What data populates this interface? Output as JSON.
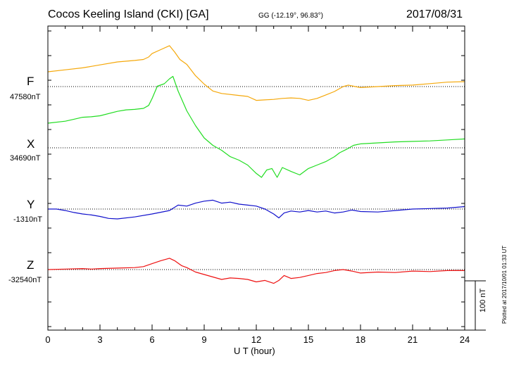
{
  "header": {
    "station": "Cocos Keeling Island (CKI)  [GA]",
    "coords": "GG (-12.19°,  96.83°)",
    "date": "2017/08/31"
  },
  "components": [
    {
      "name": "F",
      "baseline": "47580nT",
      "color": "#f5a80a"
    },
    {
      "name": "X",
      "baseline": "34690nT",
      "color": "#22dd22"
    },
    {
      "name": "Y",
      "baseline": "-1310nT",
      "color": "#1111cc"
    },
    {
      "name": "Z",
      "baseline": "-32540nT",
      "color": "#ee1111"
    }
  ],
  "scale_label": "100 nT",
  "plotted_label": "Plotted at 2017/10/01 01:33 UT",
  "chart_data": {
    "type": "line",
    "title": "Cocos Keeling Island (CKI)  [GA]",
    "xlabel": "U T (hour)",
    "xlim": [
      0,
      24
    ],
    "x_ticks": [
      0,
      3,
      6,
      9,
      12,
      15,
      18,
      21,
      24
    ],
    "y_unit": "nT",
    "scale_bar_nT": 100,
    "grid": "dotted baselines",
    "series": [
      {
        "name": "F",
        "baseline_nT": 47580,
        "x": [
          0,
          1,
          2,
          2.5,
          3,
          4,
          5,
          5.5,
          5.8,
          6,
          6.5,
          7,
          7.3,
          7.6,
          8,
          8.5,
          9,
          9.5,
          10,
          11,
          11.5,
          12,
          12.5,
          13,
          13.5,
          14,
          14.5,
          15,
          15.5,
          16,
          16.5,
          17,
          17.3,
          17.7,
          18,
          19,
          20,
          21,
          22,
          23,
          24
        ],
        "y": [
          30,
          34,
          38,
          41,
          44,
          50,
          53,
          55,
          60,
          67,
          75,
          83,
          70,
          55,
          45,
          22,
          5,
          -9,
          -14,
          -18,
          -20,
          -28,
          -27,
          -26,
          -24,
          -23,
          -24,
          -28,
          -24,
          -17,
          -10,
          0,
          3,
          0,
          -2,
          0,
          2,
          3,
          6,
          9,
          10
        ]
      },
      {
        "name": "X",
        "baseline_nT": 34690,
        "x": [
          0,
          1,
          1.5,
          2,
          2.5,
          3,
          4,
          4.5,
          5,
          5.5,
          5.8,
          6,
          6.3,
          6.7,
          7,
          7.2,
          7.5,
          8,
          8.5,
          9,
          9.5,
          10,
          10.5,
          11,
          11.5,
          12,
          12.3,
          12.6,
          12.9,
          13.2,
          13.5,
          14,
          14.5,
          15,
          15.5,
          16,
          16.5,
          16.8,
          17.2,
          17.6,
          18,
          19,
          20,
          21,
          22,
          23,
          24
        ],
        "y": [
          50,
          54,
          58,
          62,
          63,
          65,
          74,
          77,
          78,
          80,
          86,
          100,
          125,
          130,
          140,
          145,
          115,
          75,
          45,
          20,
          5,
          -5,
          -18,
          -25,
          -35,
          -52,
          -60,
          -45,
          -42,
          -60,
          -40,
          -48,
          -55,
          -42,
          -35,
          -28,
          -18,
          -10,
          -3,
          5,
          8,
          10,
          12,
          13,
          14,
          16,
          18
        ]
      },
      {
        "name": "Y",
        "baseline_nT": -1310,
        "x": [
          0,
          0.5,
          1,
          1.5,
          2,
          2.5,
          3,
          3.5,
          4,
          5,
          6,
          7,
          7.5,
          8,
          8.5,
          9,
          9.5,
          10,
          10.5,
          11,
          11.5,
          12,
          12.5,
          13,
          13.3,
          13.6,
          14,
          14.5,
          15,
          15.5,
          16,
          16.5,
          17,
          17.5,
          18,
          19,
          20,
          21,
          22,
          23,
          24
        ],
        "y": [
          0,
          0,
          -3,
          -7,
          -10,
          -12,
          -15,
          -19,
          -20,
          -16,
          -10,
          -3,
          8,
          6,
          12,
          16,
          18,
          12,
          14,
          10,
          8,
          6,
          0,
          -10,
          -18,
          -8,
          -4,
          -6,
          -3,
          -6,
          -4,
          -8,
          -6,
          -2,
          -5,
          -6,
          -3,
          0,
          1,
          2,
          5
        ]
      },
      {
        "name": "Z",
        "baseline_nT": -32540,
        "x": [
          0,
          1,
          2,
          2.5,
          3,
          4,
          5,
          5.5,
          6,
          6.5,
          7,
          7.3,
          7.7,
          8,
          8.5,
          9,
          9.5,
          10,
          10.5,
          11,
          11.5,
          12,
          12.5,
          13,
          13.3,
          13.6,
          14,
          14.5,
          15,
          15.5,
          16,
          16.5,
          17,
          17.5,
          18,
          19,
          20,
          21,
          22,
          23,
          24
        ],
        "y": [
          0,
          1,
          2,
          1,
          2,
          3,
          4,
          6,
          12,
          18,
          23,
          18,
          8,
          4,
          -5,
          -10,
          -15,
          -20,
          -17,
          -18,
          -20,
          -25,
          -22,
          -28,
          -22,
          -12,
          -18,
          -16,
          -12,
          -8,
          -6,
          -2,
          0,
          -3,
          -7,
          -5,
          -6,
          -3,
          -4,
          -2,
          -2
        ]
      }
    ]
  }
}
